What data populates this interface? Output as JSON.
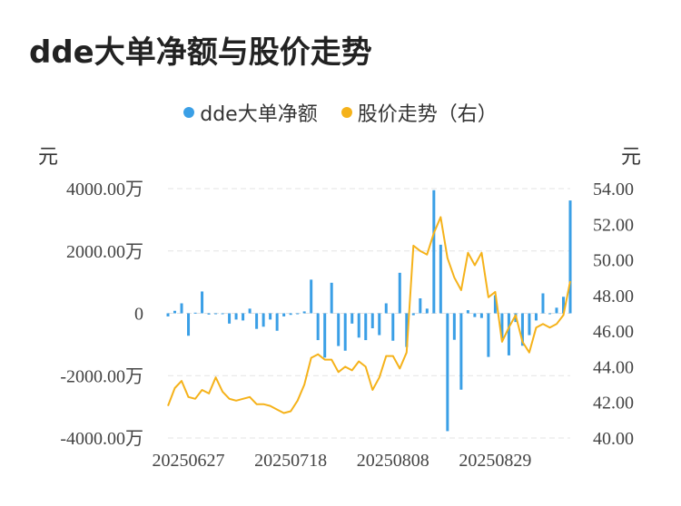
{
  "title": "dde大单净额与股价走势",
  "legend": {
    "left_label": "dde大单净额",
    "right_label": "股价走势（右）"
  },
  "units": {
    "left": "元",
    "right": "元"
  },
  "colors": {
    "bars": "#3a9fe6",
    "line": "#f5b21a",
    "grid": "#e3e3e3"
  },
  "chart_data": {
    "type": "bar+line",
    "x_tick_labels": [
      "20250627",
      "20250718",
      "20250808",
      "20250829"
    ],
    "x_tick_index": [
      3,
      18,
      33,
      48
    ],
    "y_left": {
      "range": [
        -4000,
        4000
      ],
      "tick_values": [
        4000,
        2000,
        0,
        -2000,
        -4000
      ],
      "tick_labels": [
        "4000.00万",
        "2000.00万",
        "0",
        "-2000.00万",
        "-4000.00万"
      ]
    },
    "y_right": {
      "range": [
        40,
        54
      ],
      "tick_values": [
        54,
        52,
        50,
        48,
        46,
        44,
        42,
        40
      ],
      "tick_labels": [
        "54.00",
        "52.00",
        "50.00",
        "48.00",
        "46.00",
        "44.00",
        "42.00",
        "40.00"
      ]
    },
    "series": [
      {
        "name": "dde大单净额",
        "unit": "万元",
        "kind": "bar",
        "values": [
          -100,
          80,
          320,
          -720,
          20,
          700,
          -40,
          0,
          -20,
          -330,
          -200,
          -230,
          150,
          -500,
          -430,
          -200,
          -560,
          -100,
          -50,
          -30,
          60,
          1080,
          -860,
          -1420,
          980,
          -1050,
          -1200,
          -330,
          -780,
          -860,
          -480,
          -700,
          320,
          -880,
          1300,
          -1080,
          -60,
          480,
          150,
          3950,
          2200,
          -3780,
          -850,
          -2450,
          100,
          -120,
          -150,
          -1400,
          580,
          -800,
          -1350,
          -280,
          -1040,
          -700,
          -230,
          640,
          -20,
          180,
          530,
          3620
        ]
      },
      {
        "name": "股价走势（右）",
        "unit": "元",
        "kind": "line",
        "values": [
          41.8,
          42.8,
          43.2,
          42.3,
          42.2,
          42.7,
          42.5,
          43.4,
          42.6,
          42.2,
          42.1,
          42.2,
          42.3,
          41.9,
          41.9,
          41.8,
          41.6,
          41.4,
          41.5,
          42.1,
          43.0,
          44.5,
          44.7,
          44.4,
          44.4,
          43.7,
          44.0,
          43.8,
          44.3,
          44.0,
          42.7,
          43.4,
          44.6,
          44.6,
          43.9,
          44.8,
          50.8,
          50.5,
          50.3,
          51.5,
          52.4,
          50.1,
          49.0,
          48.3,
          50.4,
          49.7,
          50.4,
          47.9,
          48.2,
          45.4,
          46.2,
          46.9,
          45.4,
          44.8,
          46.2,
          46.4,
          46.2,
          46.4,
          46.9,
          48.8
        ]
      }
    ]
  }
}
